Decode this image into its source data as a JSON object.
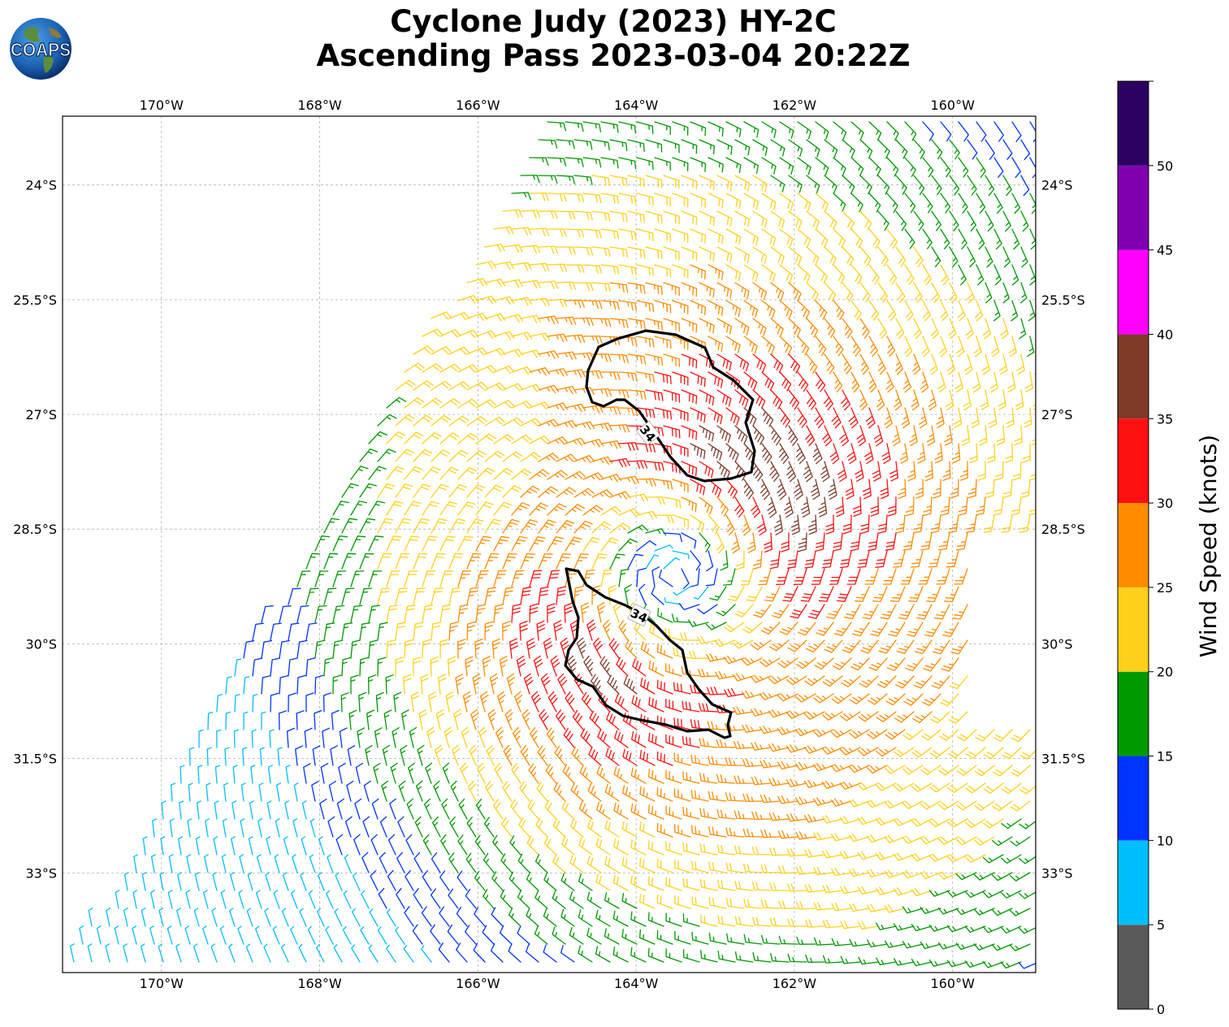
{
  "header": {
    "title_line1": "Cyclone Judy (2023) HY-2C",
    "title_line2": "Ascending Pass 2023-03-04 20:22Z",
    "logo_text": "COAPS"
  },
  "map": {
    "type": "wind-barb-map",
    "lon_labels": [
      "170°W",
      "168°W",
      "166°W",
      "164°W",
      "162°W",
      "160°W"
    ],
    "lat_labels": [
      "24°S",
      "25.5°S",
      "27°S",
      "28.5°S",
      "30°S",
      "31.5°S",
      "33°S"
    ],
    "lon_range": [
      -171.25,
      -158.95
    ],
    "lat_range": [
      -34.3,
      -23.1
    ],
    "grid": true,
    "storm_center": {
      "lon": -163.5,
      "lat": -29.1
    },
    "contour_label": "34",
    "contour_level_knots": 34
  },
  "colorbar": {
    "label": "Wind Speed (knots)",
    "ticks": [
      "0",
      "5",
      "10",
      "15",
      "20",
      "25",
      "30",
      "35",
      "40",
      "45",
      "50"
    ],
    "bins": [
      {
        "min": 0,
        "max": 5,
        "color": "#595959"
      },
      {
        "min": 5,
        "max": 10,
        "color": "#00bfff"
      },
      {
        "min": 10,
        "max": 15,
        "color": "#0033ff"
      },
      {
        "min": 15,
        "max": 20,
        "color": "#009900"
      },
      {
        "min": 20,
        "max": 25,
        "color": "#ffd11a"
      },
      {
        "min": 25,
        "max": 30,
        "color": "#ff8c00"
      },
      {
        "min": 30,
        "max": 35,
        "color": "#ff1010"
      },
      {
        "min": 35,
        "max": 40,
        "color": "#7f3a28"
      },
      {
        "min": 40,
        "max": 45,
        "color": "#ff00ff"
      },
      {
        "min": 45,
        "max": 50,
        "color": "#8000b0"
      },
      {
        "min": 50,
        "max": 55,
        "color": "#2c0060"
      }
    ]
  },
  "colors": {
    "contour": "#000000",
    "grid": "#b0b0b0",
    "barb_blue": "#0033ff",
    "barb_green": "#009900",
    "barb_yellow": "#ffd11a",
    "barb_orange": "#ff8c00",
    "barb_red": "#e00000",
    "barb_brown": "#6b3a2a",
    "barb_magenta": "#ff00ff"
  }
}
